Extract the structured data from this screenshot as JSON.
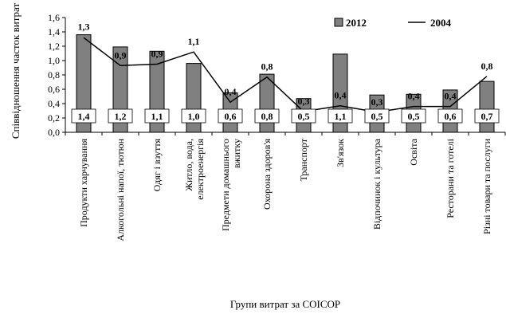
{
  "chart_data": {
    "type": "bar",
    "ylabel": "Співвідношення часток витрат",
    "xlabel": "Групи витрат за COICOP",
    "ylim": [
      0,
      1.6
    ],
    "yticks": [
      "0,0",
      "0,2",
      "0,4",
      "0,6",
      "0,8",
      "1,0",
      "1,2",
      "1,4",
      "1,6"
    ],
    "categories": [
      [
        "Продукти харчування"
      ],
      [
        "Алкогольні напої, тютюн"
      ],
      [
        "Одяг і взуття"
      ],
      [
        "Житло, вода,",
        "електроенергія"
      ],
      [
        "Предмети домашнього",
        "вжитку"
      ],
      [
        "Охорона здоров'я"
      ],
      [
        "Транспорт"
      ],
      [
        "Зв'язок"
      ],
      [
        "Відпочинок і культура"
      ],
      [
        "Освіта"
      ],
      [
        "Ресторани та готелі"
      ],
      [
        "Різні товари та послуги"
      ]
    ],
    "series": [
      {
        "name": "2012",
        "type": "bar",
        "color": "#808080",
        "values": [
          1.36,
          1.19,
          1.13,
          0.96,
          0.55,
          0.81,
          0.47,
          1.09,
          0.52,
          0.53,
          0.59,
          0.71
        ],
        "labels": [
          "1,4",
          "1,2",
          "1,1",
          "1,0",
          "0,6",
          "0,8",
          "0,5",
          "1,1",
          "0,5",
          "0,5",
          "0,6",
          "0,7"
        ]
      },
      {
        "name": "2004",
        "type": "line",
        "color": "#000000",
        "values": [
          1.32,
          0.93,
          0.95,
          1.12,
          0.42,
          0.77,
          0.29,
          0.37,
          0.28,
          0.36,
          0.36,
          0.78
        ],
        "labels": [
          "1,3",
          "0,9",
          "0,9",
          "1,1",
          "0,4",
          "0,8",
          "0,3",
          "0,4",
          "0,3",
          "0,4",
          "0,4",
          "0,8"
        ]
      }
    ],
    "legend": {
      "placement": "top-right"
    },
    "grid": false
  }
}
